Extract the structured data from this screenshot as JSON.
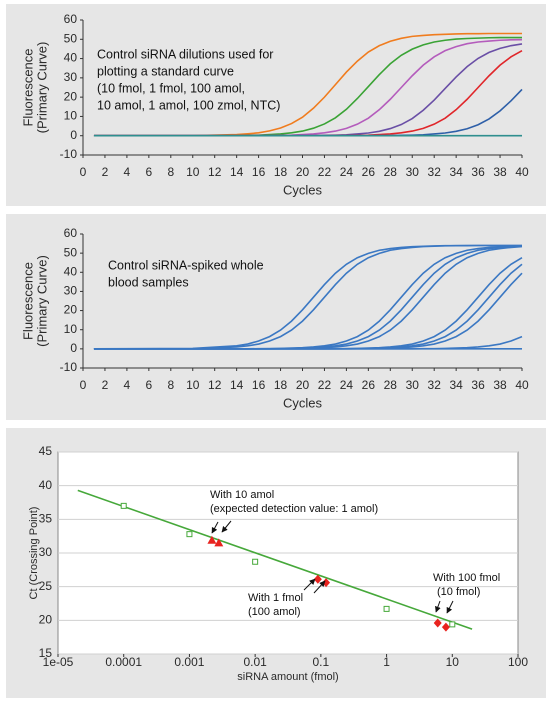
{
  "chart_data": [
    {
      "type": "line",
      "ylabel": [
        "Fluorescence",
        "(Primary Curve)"
      ],
      "xlabel": "Cycles",
      "annotation": [
        "Control siRNA dilutions used for",
        "plotting a standard curve",
        "(10 fmol, 1 fmol, 100 amol,",
        "10 amol, 1 amol, 100 zmol, NTC)"
      ],
      "xlim": [
        0,
        40
      ],
      "xticks": [
        0,
        2,
        4,
        6,
        8,
        10,
        12,
        14,
        16,
        18,
        20,
        22,
        24,
        26,
        28,
        30,
        32,
        34,
        36,
        38,
        40
      ],
      "ylim": [
        -10,
        60
      ],
      "yticks": [
        -10,
        0,
        10,
        20,
        30,
        40,
        50,
        60
      ],
      "grid": false,
      "x": [
        1,
        10,
        14,
        15,
        16,
        17,
        18,
        19,
        20,
        21,
        22,
        23,
        24,
        25,
        26,
        27,
        28,
        29,
        30,
        31,
        32,
        33,
        34,
        35,
        36,
        37,
        38,
        39,
        40
      ],
      "series": [
        {
          "color": "#f07c1e",
          "values": [
            0,
            0,
            0.6,
            1.0,
            1.5,
            2.5,
            4.0,
            6.3,
            9.6,
            14.3,
            20.0,
            26.5,
            33.0,
            38.7,
            43.4,
            46.7,
            49.0,
            50.5,
            51.5,
            52.0,
            52.4,
            52.6,
            52.8,
            52.9,
            52.9,
            53.0,
            53.0,
            53.0,
            53.0
          ]
        },
        {
          "color": "#3aa335",
          "values": [
            0,
            0,
            0.1,
            0.2,
            0.3,
            0.6,
            0.9,
            1.5,
            2.4,
            3.9,
            6.1,
            9.3,
            13.7,
            19.3,
            25.5,
            31.7,
            37.3,
            41.7,
            44.9,
            47.1,
            48.6,
            49.5,
            50.1,
            50.4,
            50.6,
            50.8,
            50.9,
            50.9,
            50.9
          ]
        },
        {
          "color": "#b45cbc",
          "values": [
            0,
            0,
            0,
            0,
            0.1,
            0.1,
            0.2,
            0.3,
            0.6,
            0.9,
            1.5,
            2.4,
            3.8,
            6.0,
            9.1,
            13.5,
            18.9,
            25.0,
            31.1,
            36.6,
            40.9,
            44.1,
            46.2,
            47.7,
            48.6,
            49.1,
            49.5,
            49.7,
            49.8
          ]
        },
        {
          "color": "#6a4fa6",
          "values": [
            0,
            0,
            0,
            0,
            0,
            0,
            0,
            0,
            0.1,
            0.1,
            0.2,
            0.3,
            0.5,
            0.9,
            1.4,
            2.3,
            3.7,
            5.8,
            8.9,
            13.2,
            18.5,
            24.5,
            30.5,
            35.8,
            40.1,
            43.2,
            45.3,
            46.7,
            47.6
          ]
        },
        {
          "color": "#e0262a",
          "values": [
            0,
            0,
            0,
            0,
            0,
            0,
            0,
            0,
            0,
            0,
            0,
            0.1,
            0.1,
            0.2,
            0.3,
            0.6,
            0.9,
            1.5,
            2.4,
            3.8,
            6.0,
            9.1,
            13.5,
            18.9,
            25.0,
            31.1,
            36.6,
            40.9,
            44.1
          ]
        },
        {
          "color": "#2e5fa8",
          "values": [
            0,
            0,
            0,
            0,
            0,
            0,
            0,
            0,
            0,
            0,
            0,
            0,
            0,
            0,
            0,
            0.1,
            0.1,
            0.2,
            0.3,
            0.5,
            0.9,
            1.4,
            2.3,
            3.6,
            5.7,
            8.7,
            12.9,
            18.1,
            24.0
          ]
        },
        {
          "color": "#2f8f8f",
          "values": [
            0,
            0,
            0,
            0,
            0,
            0,
            0,
            0,
            0,
            0,
            0,
            0,
            0,
            0,
            0,
            0,
            0,
            0,
            0,
            0,
            0,
            0,
            0,
            0,
            0,
            0,
            0,
            0,
            0
          ]
        }
      ]
    },
    {
      "type": "line",
      "ylabel": [
        "Fluorescence",
        "(Primary Curve)"
      ],
      "xlabel": "Cycles",
      "annotation": [
        "Control siRNA-spiked whole",
        "blood samples"
      ],
      "xlim": [
        0,
        40
      ],
      "xticks": [
        0,
        2,
        4,
        6,
        8,
        10,
        12,
        14,
        16,
        18,
        20,
        22,
        24,
        26,
        28,
        30,
        32,
        34,
        36,
        38,
        40
      ],
      "ylim": [
        -10,
        60
      ],
      "yticks": [
        -10,
        0,
        10,
        20,
        30,
        40,
        50,
        60
      ],
      "grid": false,
      "x": [
        1,
        10,
        14,
        15,
        16,
        17,
        18,
        19,
        20,
        21,
        22,
        23,
        24,
        25,
        26,
        27,
        28,
        29,
        30,
        31,
        32,
        33,
        34,
        35,
        36,
        37,
        38,
        39,
        40
      ],
      "series": [
        {
          "color": "#3b78c3",
          "values": [
            0,
            0.2,
            1.6,
            2.5,
            4.1,
            6.4,
            9.8,
            14.5,
            20.4,
            27.0,
            33.6,
            39.5,
            44.2,
            47.6,
            49.9,
            51.5,
            52.4,
            53.0,
            53.4,
            53.6,
            53.8,
            53.9,
            53.9,
            54.0,
            54.0,
            54.0,
            54.0,
            54.0,
            54.0
          ]
        },
        {
          "color": "#3b78c3",
          "values": [
            0,
            0.1,
            1.0,
            1.6,
            2.5,
            4.1,
            6.4,
            9.8,
            14.5,
            20.4,
            27.0,
            33.6,
            39.5,
            44.2,
            47.6,
            49.9,
            51.5,
            52.4,
            53.0,
            53.4,
            53.6,
            53.8,
            53.9,
            53.9,
            54.0,
            54.0,
            54.0,
            54.0,
            54.0
          ]
        },
        {
          "color": "#3b78c3",
          "values": [
            0,
            0,
            0,
            0,
            0.1,
            0.1,
            0.2,
            0.4,
            0.6,
            1.0,
            1.6,
            2.5,
            4.1,
            6.4,
            9.8,
            14.5,
            20.4,
            27.0,
            33.6,
            39.5,
            44.2,
            47.6,
            49.9,
            51.5,
            52.4,
            53.0,
            53.4,
            53.6,
            53.8
          ]
        },
        {
          "color": "#3b78c3",
          "values": [
            0,
            0,
            0,
            0,
            0,
            0.1,
            0.1,
            0.2,
            0.4,
            0.6,
            1.0,
            1.6,
            2.5,
            4.1,
            6.4,
            9.8,
            14.5,
            20.4,
            27.0,
            33.6,
            39.5,
            44.2,
            47.6,
            49.9,
            51.5,
            52.4,
            53.0,
            53.4,
            53.6
          ]
        },
        {
          "color": "#3b78c3",
          "values": [
            0,
            0,
            0,
            0,
            0,
            0,
            0.1,
            0.1,
            0.2,
            0.4,
            0.6,
            1.0,
            1.6,
            2.5,
            4.1,
            6.4,
            9.8,
            14.5,
            20.4,
            27.0,
            33.6,
            39.5,
            44.2,
            47.6,
            49.9,
            51.5,
            52.4,
            53.0,
            53.4
          ]
        },
        {
          "color": "#3b78c3",
          "values": [
            0,
            0,
            0,
            0,
            0,
            0,
            0,
            0,
            0,
            0,
            0,
            0.1,
            0.1,
            0.2,
            0.4,
            0.6,
            1.0,
            1.6,
            2.5,
            4.1,
            6.4,
            9.8,
            14.5,
            20.4,
            27.0,
            33.6,
            39.5,
            44.2,
            47.6
          ]
        },
        {
          "color": "#3b78c3",
          "values": [
            0,
            0,
            0,
            0,
            0,
            0,
            0,
            0,
            0,
            0,
            0,
            0,
            0.1,
            0.1,
            0.2,
            0.4,
            0.6,
            1.0,
            1.6,
            2.5,
            4.1,
            6.4,
            9.8,
            14.5,
            20.4,
            27.0,
            33.6,
            39.5,
            44.2
          ]
        },
        {
          "color": "#3b78c3",
          "values": [
            0,
            0,
            0,
            0,
            0,
            0,
            0,
            0,
            0,
            0,
            0,
            0,
            0,
            0.1,
            0.1,
            0.2,
            0.4,
            0.6,
            1.0,
            1.6,
            2.5,
            4.1,
            6.4,
            9.8,
            14.5,
            20.4,
            27.0,
            33.6,
            39.5
          ]
        },
        {
          "color": "#3b78c3",
          "values": [
            0,
            0,
            0,
            0,
            0,
            0,
            0,
            0,
            0,
            0,
            0,
            0,
            0,
            0,
            0,
            0,
            0,
            0,
            0,
            0.1,
            0.1,
            0.2,
            0.4,
            0.6,
            1.0,
            1.6,
            2.5,
            4.1,
            6.4
          ]
        },
        {
          "color": "#3b78c3",
          "values": [
            0,
            0,
            0,
            0,
            0,
            0,
            0,
            0,
            0,
            0,
            0,
            0,
            0,
            0,
            0,
            0,
            0,
            0,
            0,
            0,
            0,
            0,
            0,
            0,
            0,
            0,
            0,
            0,
            0
          ]
        }
      ]
    },
    {
      "type": "scatter",
      "ylabel": [
        "Ct (Crossing Point)"
      ],
      "xlabel": "siRNA amount (fmol)",
      "xscale": "log",
      "grid": true,
      "annotations": [
        [
          "With 10 amol",
          "(expected detection value: 1 amol)"
        ],
        [
          "With 1 fmol",
          "(100 amol)"
        ],
        [
          "With 100 fmol",
          "(10 fmol)"
        ]
      ],
      "xlim": [
        1e-05,
        100
      ],
      "xticks": [
        {
          "value": 1e-05,
          "label": "1e-05"
        },
        0.0001,
        0.001,
        0.01,
        0.1,
        1,
        10,
        100
      ],
      "ylim": [
        15,
        45
      ],
      "yticks": [
        15,
        20,
        25,
        30,
        35,
        40,
        45
      ],
      "series": [
        {
          "marker": "line",
          "color": "#46a83a",
          "x": [
            2e-05,
            20
          ],
          "values": [
            39.3,
            18.7
          ]
        },
        {
          "marker": "square",
          "color": "#46a83a",
          "x": [
            0.0001,
            0.001,
            0.01,
            1,
            10
          ],
          "values": [
            37.0,
            32.8,
            28.7,
            21.7,
            19.4
          ]
        },
        {
          "marker": "triangle",
          "color": "#e8231f",
          "x": [
            0.0022,
            0.0028
          ],
          "values": [
            31.9,
            31.5
          ]
        },
        {
          "marker": "diamond",
          "color": "#e8231f",
          "x": [
            0.09,
            0.12,
            6,
            8
          ],
          "values": [
            26.1,
            25.6,
            19.6,
            19.0
          ]
        }
      ]
    }
  ]
}
